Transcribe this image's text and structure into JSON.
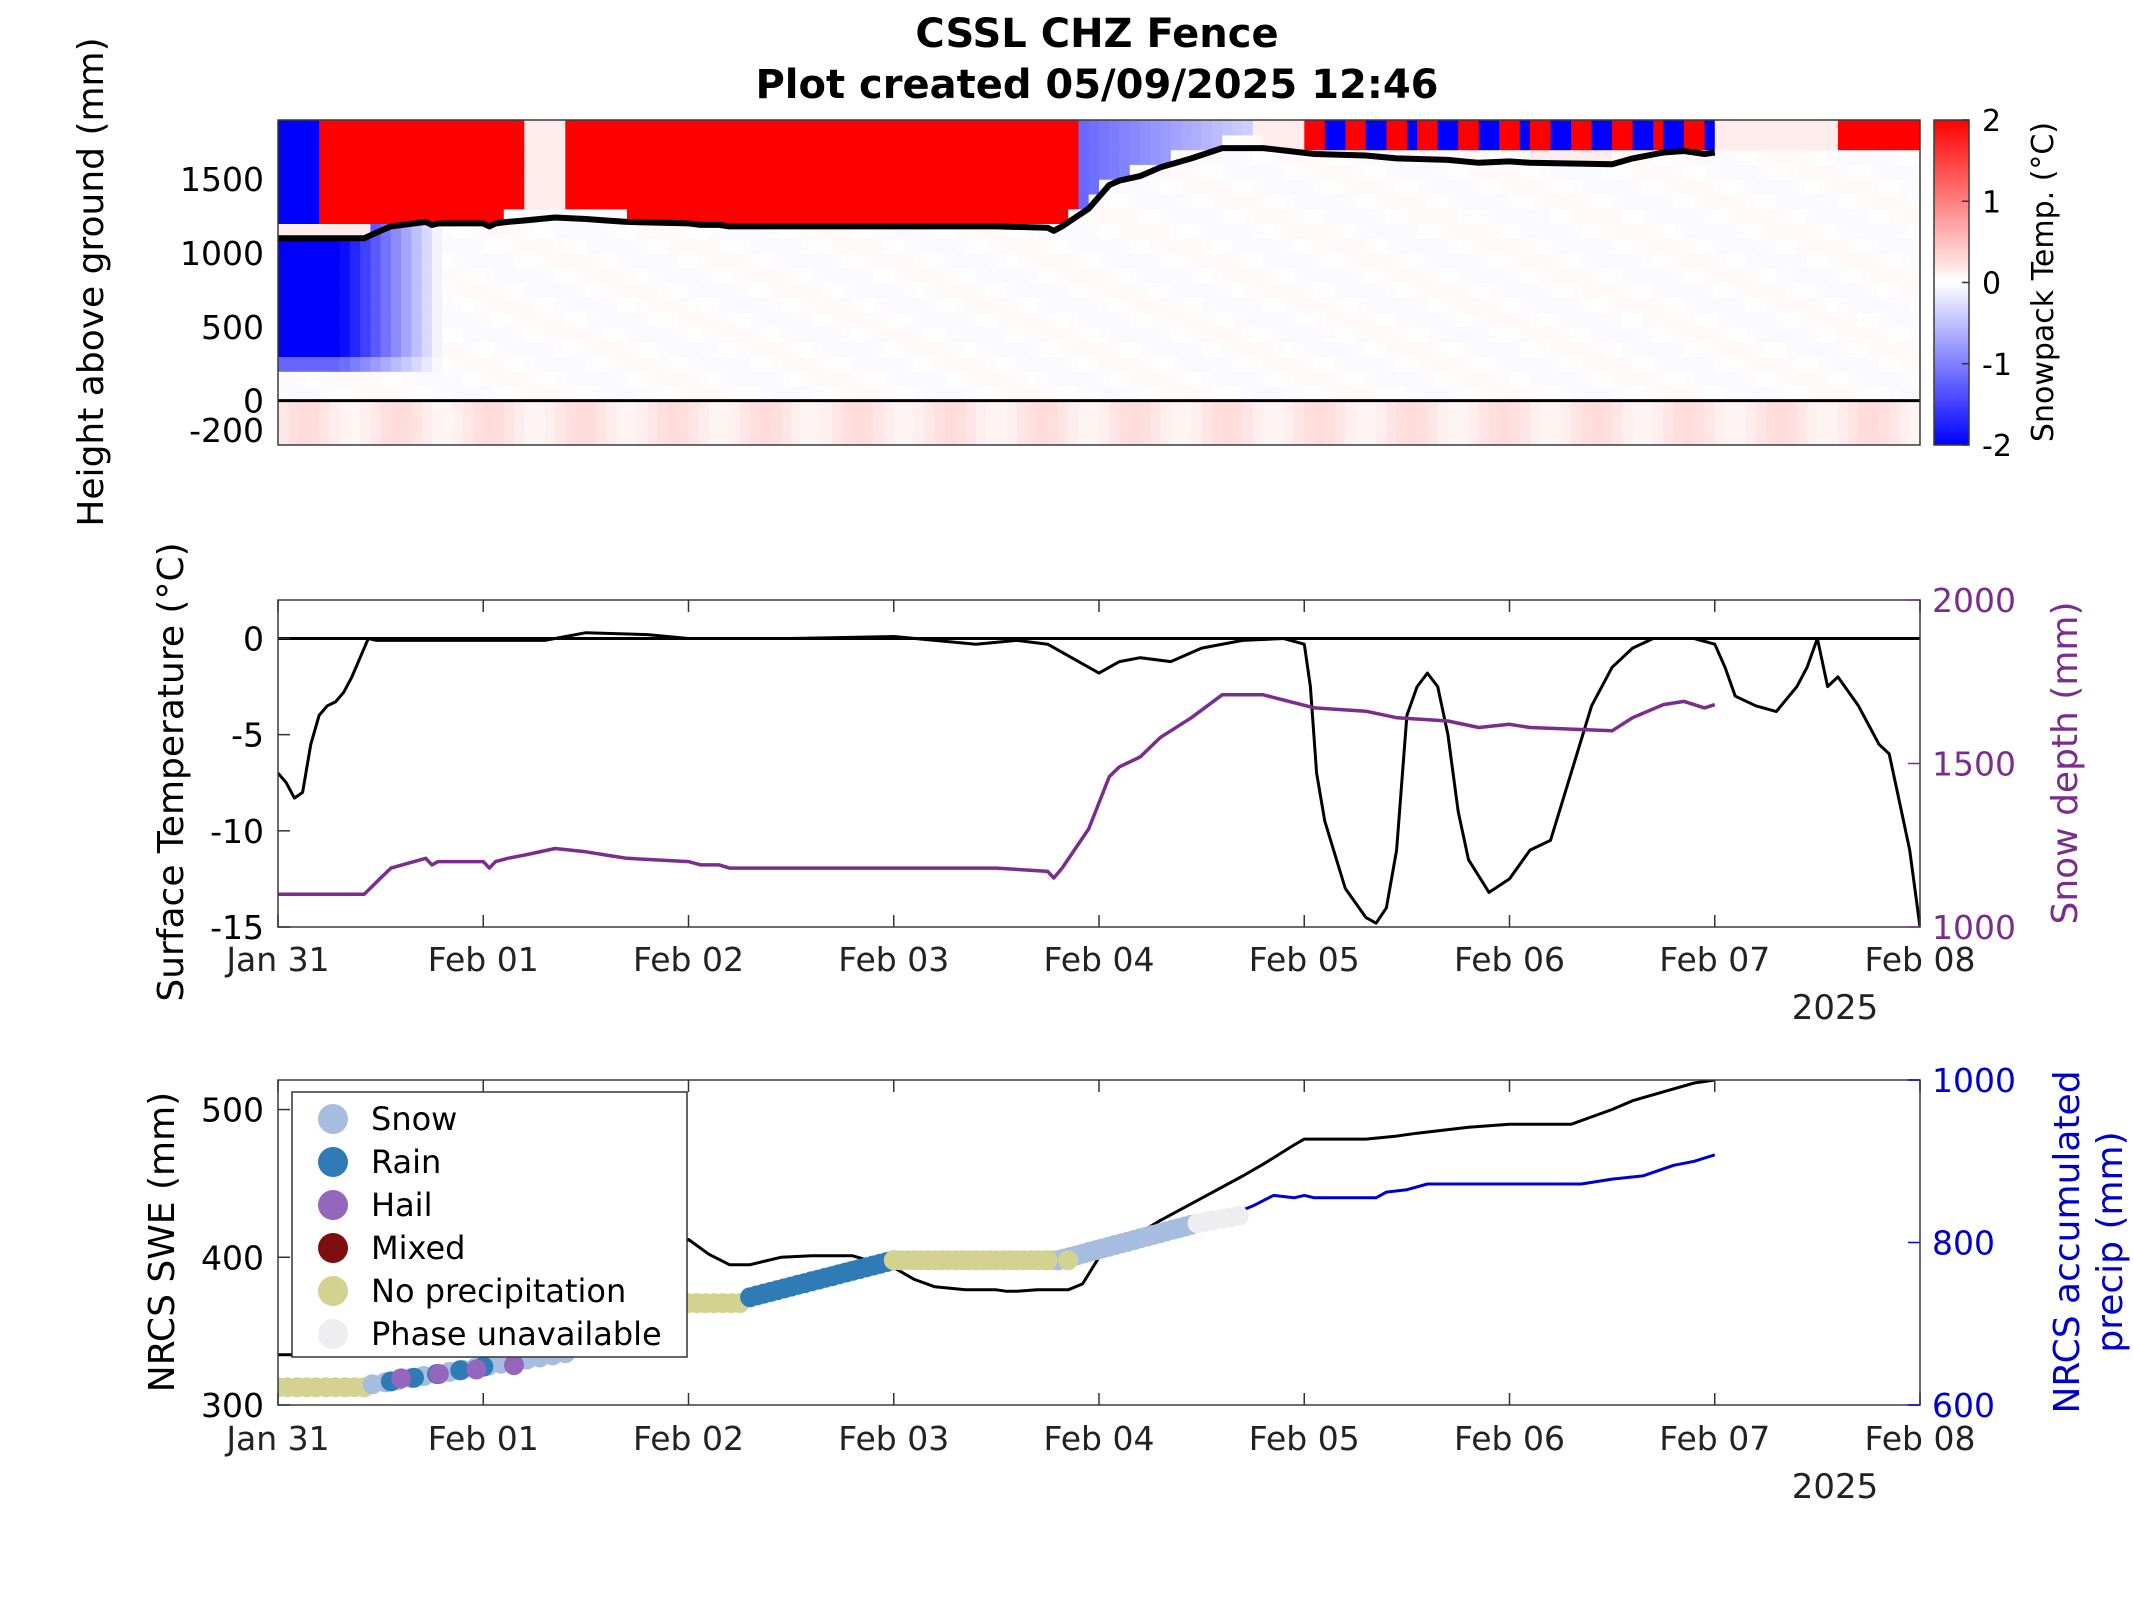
{
  "title_line1": "CSSL CHZ Fence",
  "title_line2": "Plot created 05/09/2025 12:46",
  "colors": {
    "surface_temp": "#000000",
    "snow_depth": "#7b2d8e",
    "swe": "#000000",
    "accum_precip": "#0000cc",
    "snow": "#a7bde0",
    "rain": "#2f7bb5",
    "hail": "#9467bd",
    "mixed": "#7f0f0f",
    "no_precip": "#d3d291",
    "phase_unavailable": "#eeeef0"
  },
  "chart_data": [
    {
      "id": "snowpack",
      "type": "heatmap",
      "ylabel": "Height above ground (mm)",
      "colorbar_label": "Snowpack Temp. (°C)",
      "colorbar_ticks": [
        "2",
        "1",
        "0",
        "-1",
        "-2"
      ],
      "colorbar_range": [
        -2,
        2
      ],
      "ylim": [
        -300,
        1900
      ],
      "ytick_labels": [
        "1500",
        "1000",
        "500",
        "0",
        "-200"
      ],
      "yticks": [
        1500,
        1000,
        500,
        0,
        -200
      ],
      "xlim_days": [
        0,
        8
      ],
      "snow_depth_line": {
        "x": [
          0,
          0.42,
          0.5,
          0.55,
          0.72,
          0.75,
          0.78,
          1.0,
          1.03,
          1.06,
          1.12,
          1.2,
          1.35,
          1.5,
          1.6,
          1.7,
          2.0,
          2.06,
          2.15,
          2.2,
          2.5,
          3.0,
          3.5,
          3.75,
          3.78,
          3.82,
          3.95,
          4.05,
          4.1,
          4.2,
          4.3,
          4.45,
          4.6,
          4.8,
          5.05,
          5.3,
          5.45,
          5.7,
          5.85,
          6.0,
          6.1,
          6.5,
          6.6,
          6.75,
          6.85,
          6.95,
          7.0
        ],
        "y": [
          1100,
          1100,
          1150,
          1180,
          1210,
          1190,
          1200,
          1200,
          1180,
          1200,
          1210,
          1220,
          1240,
          1230,
          1220,
          1210,
          1200,
          1190,
          1190,
          1180,
          1180,
          1180,
          1180,
          1170,
          1150,
          1180,
          1300,
          1460,
          1490,
          1520,
          1580,
          1640,
          1710,
          1710,
          1670,
          1660,
          1640,
          1630,
          1610,
          1620,
          1610,
          1600,
          1640,
          1680,
          1690,
          1670,
          1680
        ]
      }
    },
    {
      "id": "surface",
      "type": "line",
      "ylabel": "Surface Temperature (°C)",
      "ylabel_right": "Snow depth (mm)",
      "ylim": [
        -15,
        2
      ],
      "ylim_right": [
        1000,
        2000
      ],
      "yticks": [
        0,
        -5,
        -10,
        -15
      ],
      "ytick_labels": [
        "0",
        "-5",
        "-10",
        "-15"
      ],
      "yticks_right": [
        2000,
        1500,
        1000
      ],
      "ytick_labels_right": [
        "2000",
        "1500",
        "1000"
      ],
      "xtick_labels": [
        "Jan 31",
        "Feb 01",
        "Feb 02",
        "Feb 03",
        "Feb 04",
        "Feb 05",
        "Feb 06",
        "Feb 07",
        "Feb 08"
      ],
      "year_label": "2025",
      "series": [
        {
          "axis": "left",
          "x": [
            0,
            0.04,
            0.08,
            0.12,
            0.16,
            0.2,
            0.24,
            0.28,
            0.32,
            0.36,
            0.4,
            0.44,
            0.48,
            0.52,
            0.7,
            1.0,
            1.3,
            1.5,
            1.8,
            2.0,
            2.5,
            3.0,
            3.2,
            3.4,
            3.6,
            3.75,
            3.9,
            4.0,
            4.1,
            4.2,
            4.35,
            4.5,
            4.7,
            4.9,
            5.0,
            5.03,
            5.06,
            5.1,
            5.2,
            5.3,
            5.35,
            5.4,
            5.45,
            5.5,
            5.55,
            5.6,
            5.65,
            5.7,
            5.75,
            5.8,
            5.9,
            6.0,
            6.1,
            6.2,
            6.3,
            6.4,
            6.5,
            6.6,
            6.7,
            6.8,
            6.9,
            7.0,
            7.05,
            7.1,
            7.2,
            7.3,
            7.4,
            7.45,
            7.5,
            7.55,
            7.6,
            7.7,
            7.75,
            7.8,
            7.85,
            7.9,
            7.95,
            8.0
          ],
          "y": [
            -7.0,
            -7.5,
            -8.3,
            -8.0,
            -5.5,
            -4.0,
            -3.5,
            -3.3,
            -2.8,
            -2.0,
            -1.0,
            0.0,
            -0.1,
            -0.1,
            -0.1,
            -0.1,
            -0.1,
            0.3,
            0.2,
            0.0,
            0.0,
            0.1,
            -0.1,
            -0.3,
            -0.1,
            -0.3,
            -1.2,
            -1.8,
            -1.2,
            -1.0,
            -1.2,
            -0.5,
            -0.1,
            0.0,
            -0.3,
            -2.5,
            -7.0,
            -9.5,
            -13.0,
            -14.5,
            -14.8,
            -14.0,
            -11.0,
            -4.0,
            -2.5,
            -1.8,
            -2.5,
            -5.0,
            -9.0,
            -11.5,
            -13.2,
            -12.5,
            -11.0,
            -10.5,
            -7.0,
            -3.5,
            -1.5,
            -0.5,
            0.0,
            0.0,
            0.0,
            -0.3,
            -1.5,
            -3.0,
            -3.5,
            -3.8,
            -2.5,
            -1.5,
            0.0,
            -2.5,
            -2.0,
            -3.5,
            -4.5,
            -5.5,
            -6.0,
            -8.5,
            -11.0,
            -15.0
          ]
        },
        {
          "axis": "right",
          "x": [
            0,
            0.42,
            0.5,
            0.55,
            0.72,
            0.75,
            0.78,
            1.0,
            1.03,
            1.06,
            1.12,
            1.2,
            1.35,
            1.5,
            1.6,
            1.7,
            2.0,
            2.06,
            2.15,
            2.2,
            2.5,
            3.0,
            3.5,
            3.75,
            3.78,
            3.82,
            3.95,
            4.05,
            4.1,
            4.2,
            4.3,
            4.45,
            4.6,
            4.8,
            5.05,
            5.3,
            5.45,
            5.7,
            5.85,
            6.0,
            6.1,
            6.5,
            6.6,
            6.75,
            6.85,
            6.95,
            7.0
          ],
          "y": [
            1100,
            1100,
            1150,
            1180,
            1210,
            1190,
            1200,
            1200,
            1180,
            1200,
            1210,
            1220,
            1240,
            1230,
            1220,
            1210,
            1200,
            1190,
            1190,
            1180,
            1180,
            1180,
            1180,
            1170,
            1150,
            1180,
            1300,
            1460,
            1490,
            1520,
            1580,
            1640,
            1710,
            1710,
            1670,
            1660,
            1640,
            1630,
            1610,
            1620,
            1610,
            1600,
            1640,
            1680,
            1690,
            1670,
            1680
          ]
        }
      ]
    },
    {
      "id": "swe",
      "type": "line",
      "ylabel": "NRCS SWE (mm)",
      "ylabel_right_line1": "NRCS accumulated",
      "ylabel_right_line2": "precip (mm)",
      "ylim": [
        300,
        520
      ],
      "ylim_right": [
        600,
        1000
      ],
      "yticks": [
        500,
        400,
        300
      ],
      "ytick_labels": [
        "500",
        "400",
        "300"
      ],
      "yticks_right": [
        1000,
        800,
        600
      ],
      "ytick_labels_right": [
        "1000",
        "800",
        "600"
      ],
      "xtick_labels": [
        "Jan 31",
        "Feb 01",
        "Feb 02",
        "Feb 03",
        "Feb 04",
        "Feb 05",
        "Feb 06",
        "Feb 07",
        "Feb 08"
      ],
      "year_label": "2025",
      "legend": [
        {
          "key": "snow",
          "label": "Snow"
        },
        {
          "key": "rain",
          "label": "Rain"
        },
        {
          "key": "hail",
          "label": "Hail"
        },
        {
          "key": "mixed",
          "label": "Mixed"
        },
        {
          "key": "no_precip",
          "label": "No precipitation"
        },
        {
          "key": "phase_unavailable",
          "label": "Phase unavailable"
        }
      ],
      "series": [
        {
          "axis": "left",
          "x": [
            0,
            0.5,
            1.0,
            1.5,
            2.0,
            2.1,
            2.2,
            2.3,
            2.45,
            2.6,
            2.8,
            3.0,
            3.1,
            3.2,
            3.35,
            3.5,
            3.55,
            3.6,
            3.7,
            3.85,
            3.92,
            4.0,
            4.3,
            4.5,
            4.7,
            4.8,
            4.95,
            5.0,
            5.1,
            5.3,
            5.45,
            5.55,
            5.8,
            6.0,
            6.3,
            6.4,
            6.5,
            6.6,
            6.75,
            6.9,
            7.0
          ],
          "y": [
            334,
            334,
            340,
            355,
            412,
            402,
            395,
            395,
            400,
            401,
            401,
            393,
            385,
            380,
            378,
            378,
            377,
            377,
            378,
            378,
            382,
            400,
            425,
            440,
            455,
            463,
            476,
            480,
            480,
            480,
            482,
            484,
            488,
            490,
            490,
            495,
            500,
            506,
            512,
            518,
            520
          ]
        },
        {
          "axis": "right",
          "x": [
            4.7,
            4.75,
            4.85,
            4.95,
            5.0,
            5.05,
            5.1,
            5.2,
            5.35,
            5.4,
            5.5,
            5.6,
            5.8,
            6.0,
            6.2,
            6.35,
            6.5,
            6.65,
            6.8,
            6.9,
            7.0
          ],
          "y": [
            840,
            845,
            858,
            855,
            858,
            855,
            855,
            855,
            855,
            862,
            865,
            872,
            872,
            872,
            872,
            872,
            878,
            882,
            895,
            900,
            908
          ]
        }
      ],
      "phase_dots": [
        {
          "x0": 0.0,
          "x1": 0.42,
          "y0": 312,
          "y1": 312,
          "phase": "no_precip",
          "n": 10
        },
        {
          "x0": 0.46,
          "x1": 1.4,
          "y0": 314,
          "y1": 335,
          "phase": "snow",
          "n": 16
        },
        {
          "x0": 0.55,
          "x1": 1.0,
          "y0": 316,
          "y1": 326,
          "phase": "rain",
          "n": 5
        },
        {
          "x0": 0.6,
          "x1": 1.15,
          "y0": 318,
          "y1": 327,
          "phase": "hail",
          "n": 4
        },
        {
          "x0": 2.0,
          "x1": 2.25,
          "y0": 369,
          "y1": 369,
          "phase": "no_precip",
          "n": 7
        },
        {
          "x0": 2.3,
          "x1": 3.0,
          "y0": 373,
          "y1": 398,
          "phase": "rain",
          "n": 22
        },
        {
          "x0": 3.0,
          "x1": 3.8,
          "y0": 398,
          "y1": 398,
          "phase": "no_precip",
          "n": 25
        },
        {
          "x0": 3.8,
          "x1": 4.45,
          "y0": 398,
          "y1": 422,
          "phase": "snow",
          "n": 22
        },
        {
          "x0": 3.75,
          "x1": 3.85,
          "y0": 398,
          "y1": 398,
          "phase": "no_precip",
          "n": 2
        },
        {
          "x0": 4.48,
          "x1": 4.68,
          "y0": 423,
          "y1": 428,
          "phase": "phase_unavailable",
          "n": 6
        }
      ]
    }
  ]
}
